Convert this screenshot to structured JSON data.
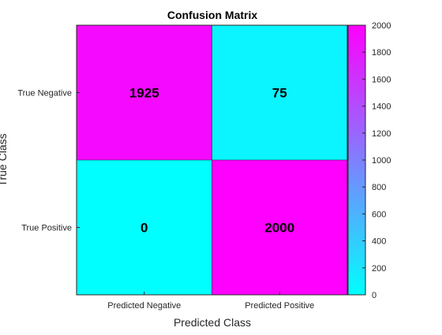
{
  "chart_data": {
    "type": "heatmap",
    "title": "Confusion Matrix",
    "xlabel": "Predicted Class",
    "ylabel": "True Class",
    "x_categories": [
      "Predicted Negative",
      "Predicted Positive"
    ],
    "y_categories": [
      "True Negative",
      "True Positive"
    ],
    "values": [
      [
        1925,
        75
      ],
      [
        0,
        2000
      ]
    ],
    "colormap": {
      "low": "#00FFFF",
      "high": "#FF00FF"
    },
    "colorbar": {
      "range": [
        0,
        2000
      ],
      "ticks": [
        0,
        200,
        400,
        600,
        800,
        1000,
        1200,
        1400,
        1600,
        1800,
        2000
      ]
    },
    "cell_label_color": "#000000"
  }
}
